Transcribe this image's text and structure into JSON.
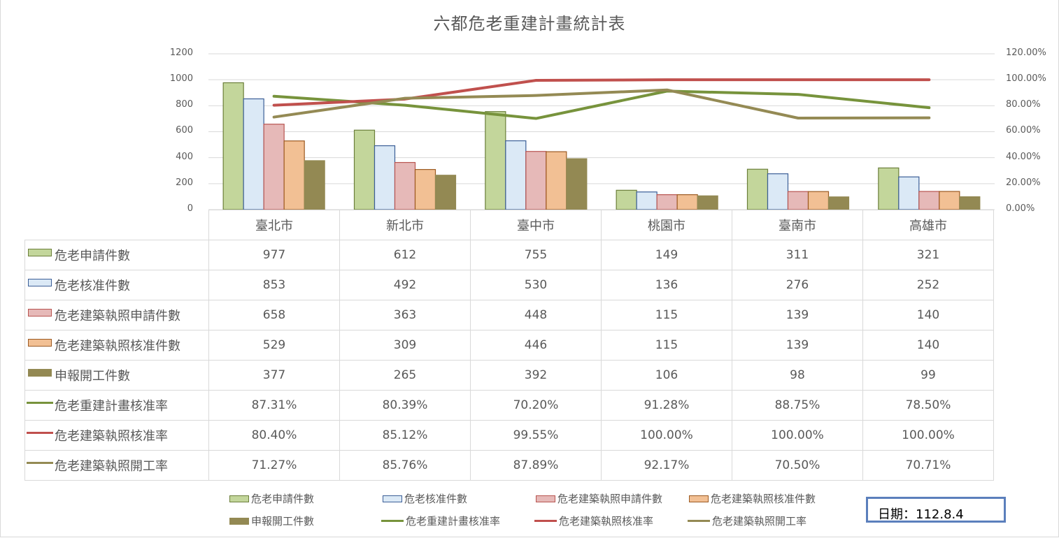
{
  "title": "六都危老重建計畫統計表",
  "left_axis": {
    "ticks": [
      "1200",
      "1000",
      "800",
      "600",
      "400",
      "200",
      "0"
    ]
  },
  "right_axis": {
    "ticks": [
      "120.00%",
      "100.00%",
      "80.00%",
      "60.00%",
      "40.00%",
      "20.00%",
      "0.00%"
    ]
  },
  "categories": [
    "臺北市",
    "新北市",
    "臺中市",
    "桃園市",
    "臺南市",
    "高雄市"
  ],
  "rows": [
    {
      "label": "危老申請件數",
      "values": [
        "977",
        "612",
        "755",
        "149",
        "311",
        "321"
      ]
    },
    {
      "label": "危老核准件數",
      "values": [
        "853",
        "492",
        "530",
        "136",
        "276",
        "252"
      ]
    },
    {
      "label": "危老建築執照申請件數",
      "values": [
        "658",
        "363",
        "448",
        "115",
        "139",
        "140"
      ]
    },
    {
      "label": "危老建築執照核准件數",
      "values": [
        "529",
        "309",
        "446",
        "115",
        "139",
        "140"
      ]
    },
    {
      "label": "申報開工件數",
      "values": [
        "377",
        "265",
        "392",
        "106",
        "98",
        "99"
      ]
    },
    {
      "label": "危老重建計畫核准率",
      "values": [
        "87.31%",
        "80.39%",
        "70.20%",
        "91.28%",
        "88.75%",
        "78.50%"
      ]
    },
    {
      "label": "危老建築執照核准率",
      "values": [
        "80.40%",
        "85.12%",
        "99.55%",
        "100.00%",
        "100.00%",
        "100.00%"
      ]
    },
    {
      "label": "危老建築執照開工率",
      "values": [
        "71.27%",
        "85.76%",
        "87.89%",
        "92.17%",
        "70.50%",
        "70.71%"
      ]
    }
  ],
  "legend": [
    "危老申請件數",
    "危老核准件數",
    "危老建築執照申請件數",
    "危老建築執照核准件數",
    "申報開工件數",
    "危老重建計畫核准率",
    "危老建築執照核准率",
    "危老建築執照開工率"
  ],
  "date_label": "日期：112.8.4",
  "colors": {
    "apply_fill": "#c3d69b",
    "apply_border": "#6b7f3a",
    "approve_fill": "#dbe9f6",
    "approve_border": "#3b5e97",
    "permit_apply_fill": "#e6b9b8",
    "permit_apply_border": "#b85450",
    "permit_approve_fill": "#f2c094",
    "permit_approve_border": "#9c5a22",
    "start_fill": "#938953",
    "rate_plan": "#77933c",
    "rate_permit": "#c0504d",
    "rate_start": "#948a54",
    "grid": "#d9d9d9",
    "date_border": "#5b7fbc"
  },
  "chart_data": {
    "type": "bar+line",
    "title": "六都危老重建計畫統計表",
    "categories": [
      "臺北市",
      "新北市",
      "臺中市",
      "桃園市",
      "臺南市",
      "高雄市"
    ],
    "series": [
      {
        "name": "危老申請件數",
        "type": "bar",
        "axis": "left",
        "values": [
          977,
          612,
          755,
          149,
          311,
          321
        ]
      },
      {
        "name": "危老核准件數",
        "type": "bar",
        "axis": "left",
        "values": [
          853,
          492,
          530,
          136,
          276,
          252
        ]
      },
      {
        "name": "危老建築執照申請件數",
        "type": "bar",
        "axis": "left",
        "values": [
          658,
          363,
          448,
          115,
          139,
          140
        ]
      },
      {
        "name": "危老建築執照核准件數",
        "type": "bar",
        "axis": "left",
        "values": [
          529,
          309,
          446,
          115,
          139,
          140
        ]
      },
      {
        "name": "申報開工件數",
        "type": "bar",
        "axis": "left",
        "values": [
          377,
          265,
          392,
          106,
          98,
          99
        ]
      },
      {
        "name": "危老重建計畫核准率",
        "type": "line",
        "axis": "right",
        "values": [
          87.31,
          80.39,
          70.2,
          91.28,
          88.75,
          78.5
        ]
      },
      {
        "name": "危老建築執照核准率",
        "type": "line",
        "axis": "right",
        "values": [
          80.4,
          85.12,
          99.55,
          100.0,
          100.0,
          100.0
        ]
      },
      {
        "name": "危老建築執照開工率",
        "type": "line",
        "axis": "right",
        "values": [
          71.27,
          85.76,
          87.89,
          92.17,
          70.5,
          70.71
        ]
      }
    ],
    "ylim_left": [
      0,
      1200
    ],
    "ylim_right": [
      0,
      120
    ],
    "yticks_left": [
      0,
      200,
      400,
      600,
      800,
      1000,
      1200
    ],
    "yticks_right": [
      "0.00%",
      "20.00%",
      "40.00%",
      "60.00%",
      "80.00%",
      "100.00%",
      "120.00%"
    ],
    "grid": true,
    "legend_position": "bottom",
    "data_table": true,
    "annotation": "日期：112.8.4"
  }
}
